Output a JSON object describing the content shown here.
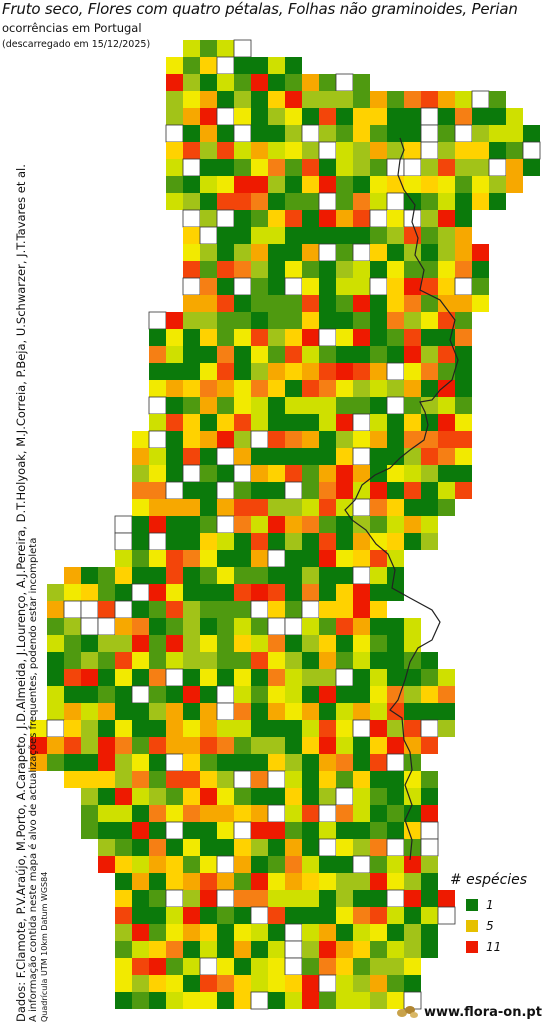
{
  "title": "Fruto seco, Flores com quatro pétalas, Folhas não graminoides, Perian",
  "subtitle": "ocorrências em Portugal",
  "download_note": "(descarregado em 15/12/2025)",
  "credits": "Dados: F.Clamote, P.V.Araújo, M.Porto, A.Carapeto, J.D.Almeida, J.Lourenço, A.J.Pereira, D.T.Holyoak, M.J.Correia, P.Beja, U.Schwarzer, J.T.Tavares et al.",
  "disclaimer": "A informação contida neste mapa é alvo de actualizações frequentes, podendo estar incompleta",
  "grid_note": "Quadrícula UTM 10km Datum WGS84",
  "legend": {
    "title": "# espécies",
    "items": [
      {
        "label": "1",
        "color": "#0b7a0b"
      },
      {
        "label": "5",
        "color": "#e6c000"
      },
      {
        "label": "11",
        "color": "#ee1a00"
      }
    ]
  },
  "colors": {
    "scale": [
      "#0b7a0b",
      "#4f9a10",
      "#a2c318",
      "#cfe000",
      "#f2ea00",
      "#ffd200",
      "#f7a800",
      "#f67f14",
      "#f3450a",
      "#ee1a00"
    ],
    "border": "#333333"
  },
  "logo": {
    "text": "www.flora-on.pt",
    "icon": "seed-logo-icon"
  }
}
